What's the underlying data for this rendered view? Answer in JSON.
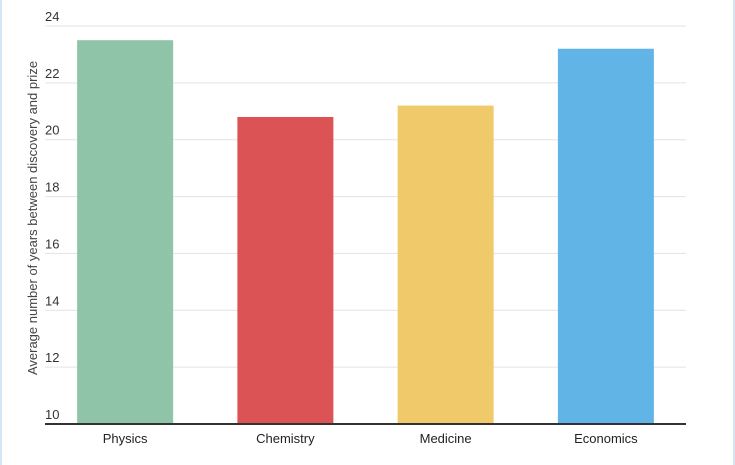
{
  "chart_data": {
    "type": "bar",
    "title": "",
    "xlabel": "",
    "ylabel": "Average number of years between discovery and prize",
    "categories": [
      "Physics",
      "Chemistry",
      "Medicine",
      "Economics"
    ],
    "values": [
      23.5,
      20.8,
      21.2,
      23.2
    ],
    "colors": [
      "#8fc4a8",
      "#dc5356",
      "#f0ca6a",
      "#61b5e6"
    ],
    "ylim": [
      10,
      24
    ],
    "yticks": [
      10,
      12,
      14,
      16,
      18,
      20,
      22,
      24
    ],
    "grid": true,
    "legend": "none"
  }
}
